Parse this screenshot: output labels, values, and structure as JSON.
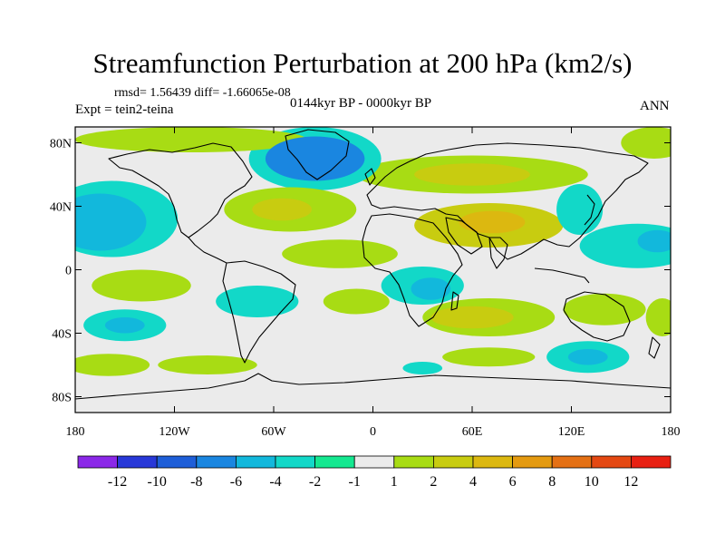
{
  "title": "Streamfunction Perturbation at 200 hPa (km2/s)",
  "stats_text": "rmsd= 1.56439 diff= -1.66065e-08",
  "period_text": "0144kyr BP - 0000kyr BP",
  "experiment_text": "Expt = tein2-teina",
  "season_text": "ANN",
  "map": {
    "lon_range": [
      -180,
      180
    ],
    "lat_range": [
      -90,
      90
    ],
    "background_color": "#ebebeb",
    "lat_ticks": [
      {
        "lat": 80,
        "label": "80N"
      },
      {
        "lat": 40,
        "label": "40N"
      },
      {
        "lat": 0,
        "label": "0"
      },
      {
        "lat": -40,
        "label": "40S"
      },
      {
        "lat": -80,
        "label": "80S"
      }
    ],
    "lon_ticks": [
      {
        "lon": -180,
        "label": "180"
      },
      {
        "lon": -120,
        "label": "120W"
      },
      {
        "lon": -60,
        "label": "60W"
      },
      {
        "lon": 0,
        "label": "0"
      },
      {
        "lon": 60,
        "label": "60E"
      },
      {
        "lon": 120,
        "label": "120E"
      },
      {
        "lon": 180,
        "label": "180"
      }
    ],
    "anomaly_features": [
      {
        "name": "anomaly-greenland-low",
        "lon": -35,
        "lat": 70,
        "rlon": 30,
        "rlat": 14,
        "level": -6
      },
      {
        "name": "anomaly-greenland-outer",
        "lon": -35,
        "lat": 70,
        "rlon": 40,
        "rlat": 20,
        "level": -2
      },
      {
        "name": "anomaly-arctic-band",
        "lon": -110,
        "lat": 82,
        "rlon": 70,
        "rlat": 8,
        "level": 2
      },
      {
        "name": "anomaly-eurasia-band",
        "lon": 60,
        "lat": 60,
        "rlon": 70,
        "rlat": 12,
        "level": 2
      },
      {
        "name": "anomaly-eurasia-core",
        "lon": 60,
        "lat": 60,
        "rlon": 35,
        "rlat": 7,
        "level": 4
      },
      {
        "name": "anomaly-nw-pacific",
        "lon": 170,
        "lat": 80,
        "rlon": 20,
        "rlat": 10,
        "level": 2
      },
      {
        "name": "anomaly-ne-pacific",
        "lon": -165,
        "lat": 30,
        "rlon": 28,
        "rlat": 18,
        "level": -4
      },
      {
        "name": "anomaly-ne-pacific-outer",
        "lon": -158,
        "lat": 32,
        "rlon": 40,
        "rlat": 24,
        "level": -2
      },
      {
        "name": "anomaly-na-atlantic",
        "lon": -50,
        "lat": 38,
        "rlon": 40,
        "rlat": 14,
        "level": 2
      },
      {
        "name": "anomaly-na-atlantic-core",
        "lon": -55,
        "lat": 38,
        "rlon": 18,
        "rlat": 7,
        "level": 4
      },
      {
        "name": "anomaly-south-asia",
        "lon": 70,
        "lat": 28,
        "rlon": 45,
        "rlat": 14,
        "level": 4
      },
      {
        "name": "anomaly-south-asia-core",
        "lon": 72,
        "lat": 30,
        "rlon": 20,
        "rlat": 7,
        "level": 6
      },
      {
        "name": "anomaly-atlantic-subtrop",
        "lon": -20,
        "lat": 10,
        "rlon": 35,
        "rlat": 9,
        "level": 2
      },
      {
        "name": "anomaly-west-pacific",
        "lon": 160,
        "lat": 15,
        "rlon": 35,
        "rlat": 14,
        "level": -2
      },
      {
        "name": "anomaly-west-pacific-core",
        "lon": 172,
        "lat": 18,
        "rlon": 12,
        "rlat": 7,
        "level": -4
      },
      {
        "name": "anomaly-east-asia",
        "lon": 125,
        "lat": 38,
        "rlon": 14,
        "rlat": 16,
        "level": -2
      },
      {
        "name": "anomaly-s-pacific-band",
        "lon": -140,
        "lat": -10,
        "rlon": 30,
        "rlat": 10,
        "level": 2
      },
      {
        "name": "anomaly-s-america-band",
        "lon": -70,
        "lat": -20,
        "rlon": 25,
        "rlat": 10,
        "level": -2
      },
      {
        "name": "anomaly-africa-east",
        "lon": 30,
        "lat": -10,
        "rlon": 25,
        "rlat": 12,
        "level": -2
      },
      {
        "name": "anomaly-africa-east-core",
        "lon": 35,
        "lat": -12,
        "rlon": 12,
        "rlat": 7,
        "level": -4
      },
      {
        "name": "anomaly-south-atlantic",
        "lon": -10,
        "lat": -20,
        "rlon": 20,
        "rlat": 8,
        "level": 2
      },
      {
        "name": "anomaly-indian-ocean",
        "lon": 70,
        "lat": -30,
        "rlon": 40,
        "rlat": 12,
        "level": 2
      },
      {
        "name": "anomaly-indian-ocean-core",
        "lon": 60,
        "lat": -30,
        "rlon": 25,
        "rlat": 7,
        "level": 4
      },
      {
        "name": "anomaly-australia",
        "lon": 140,
        "lat": -25,
        "rlon": 25,
        "rlat": 10,
        "level": 2
      },
      {
        "name": "anomaly-s-pacific-low",
        "lon": -150,
        "lat": -35,
        "rlon": 25,
        "rlat": 10,
        "level": -2
      },
      {
        "name": "anomaly-s-pacific-low-core",
        "lon": -150,
        "lat": -35,
        "rlon": 12,
        "rlat": 5,
        "level": -4
      },
      {
        "name": "anomaly-south-ocean-west",
        "lon": -160,
        "lat": -60,
        "rlon": 25,
        "rlat": 7,
        "level": 2
      },
      {
        "name": "anomaly-south-ocean-mid",
        "lon": -100,
        "lat": -60,
        "rlon": 30,
        "rlat": 6,
        "level": 2
      },
      {
        "name": "anomaly-southern-indian",
        "lon": 130,
        "lat": -55,
        "rlon": 25,
        "rlat": 10,
        "level": -2
      },
      {
        "name": "anomaly-southern-indian-core",
        "lon": 130,
        "lat": -55,
        "rlon": 12,
        "rlat": 5,
        "level": -4
      },
      {
        "name": "anomaly-south-africa",
        "lon": 30,
        "lat": -62,
        "rlon": 12,
        "rlat": 4,
        "level": -2
      },
      {
        "name": "anomaly-s-indian-band",
        "lon": 70,
        "lat": -55,
        "rlon": 28,
        "rlat": 6,
        "level": 2
      },
      {
        "name": "anomaly-east-pacific-south",
        "lon": 175,
        "lat": -30,
        "rlon": 10,
        "rlat": 12,
        "level": 2
      }
    ]
  },
  "colorbar": {
    "colors": [
      "#8b28e8",
      "#2838d8",
      "#1e5ed8",
      "#1a86e0",
      "#12b8dc",
      "#12d8c8",
      "#14e890",
      "#ebebeb",
      "#a8dc14",
      "#c8cc10",
      "#dcb810",
      "#e49a10",
      "#e47014",
      "#e44812",
      "#e82012"
    ],
    "levels": [
      {
        "index": 1,
        "label": "-12"
      },
      {
        "index": 2,
        "label": "-10"
      },
      {
        "index": 3,
        "label": "-8"
      },
      {
        "index": 4,
        "label": "-6"
      },
      {
        "index": 5,
        "label": "-4"
      },
      {
        "index": 6,
        "label": "-2"
      },
      {
        "index": 7,
        "label": "-1"
      },
      {
        "index": 8,
        "label": "1"
      },
      {
        "index": 9,
        "label": "2"
      },
      {
        "index": 10,
        "label": "4"
      },
      {
        "index": 11,
        "label": "6"
      },
      {
        "index": 12,
        "label": "8"
      },
      {
        "index": 13,
        "label": "10"
      },
      {
        "index": 14,
        "label": "12"
      }
    ],
    "level_color_map": {
      "-6": 3,
      "-4": 4,
      "-2": 5,
      "2": 8,
      "4": 9,
      "6": 10
    }
  }
}
